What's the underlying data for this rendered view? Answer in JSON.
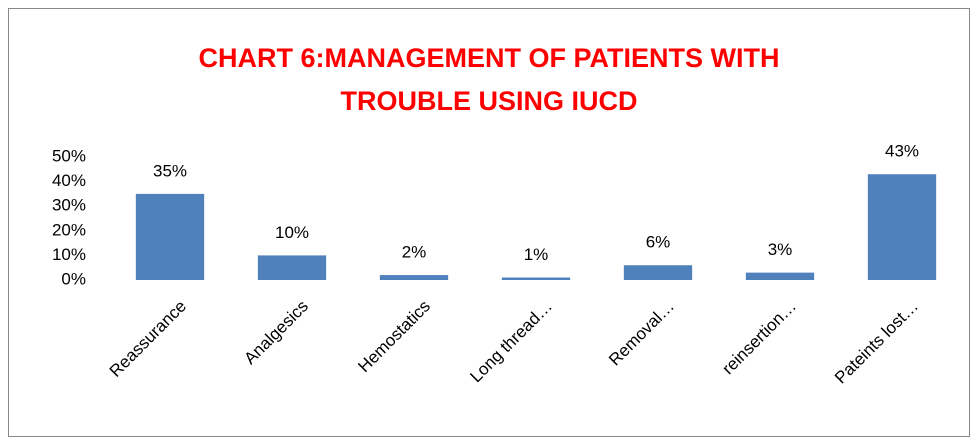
{
  "chart_data": {
    "type": "bar",
    "title": [
      "CHART 6:MANAGEMENT OF PATIENTS WITH",
      "TROUBLE USING IUCD"
    ],
    "categories": [
      "Reassurance",
      "Analgesics",
      "Hemostatics",
      "Long thread…",
      "Removal…",
      "reinsertion…",
      "Pateints lost…"
    ],
    "values": [
      35,
      10,
      2,
      1,
      6,
      3,
      43
    ],
    "value_labels": [
      "35%",
      "10%",
      "2%",
      "1%",
      "6%",
      "3%",
      "43%"
    ],
    "color": "#4f81bd",
    "ylim": [
      0,
      50
    ],
    "yticks": [
      {
        "value": 0,
        "label": "0%"
      },
      {
        "value": 10,
        "label": "10%"
      },
      {
        "value": 20,
        "label": "20%"
      },
      {
        "value": 30,
        "label": "30%"
      },
      {
        "value": 40,
        "label": "40%"
      },
      {
        "value": 50,
        "label": "50%"
      }
    ],
    "grid": false
  }
}
